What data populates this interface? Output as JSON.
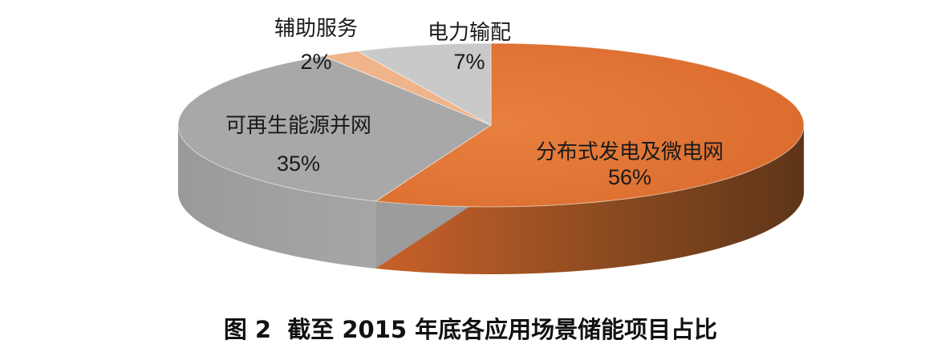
{
  "chart_data": {
    "type": "pie",
    "title": "",
    "slices": [
      {
        "label": "分布式发电及微电网",
        "percent_label": "56%",
        "value": 56,
        "color": "#E07434"
      },
      {
        "label": "可再生能源并网",
        "percent_label": "35%",
        "value": 35,
        "color": "#A8A8A8"
      },
      {
        "label": "辅助服务",
        "percent_label": "2%",
        "value": 2,
        "color": "#F0B48A"
      },
      {
        "label": "电力输配",
        "percent_label": "7%",
        "value": 7,
        "color": "#C9C9C9"
      }
    ]
  },
  "caption": "图 2  截至 2015 年底各应用场景储能项目占比"
}
